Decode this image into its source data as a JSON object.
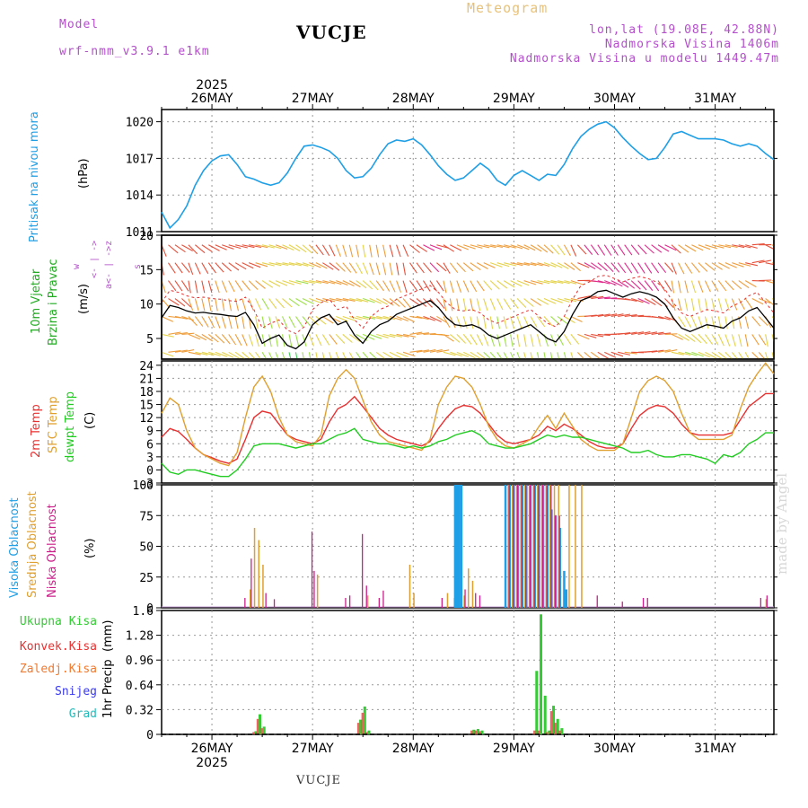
{
  "header": {
    "model_label": "Model",
    "model_name": "wrf-nmm_v3.9.1 e1km",
    "station": "VUCJE",
    "meteogram_label": "Meteogram",
    "coords": "lon,lat (19.08E, 42.88N)",
    "elevation": "Nadmorska Visina 1406m",
    "model_elevation": "Nadmorska Visina u modelu 1449.47m"
  },
  "footer": {
    "station": "VUCJE",
    "watermark": "made by Angel"
  },
  "colors": {
    "pressure": "#1e9fe6",
    "wind_label": "#22aa22",
    "temp2m": "#e83030",
    "sfc": "#e0a030",
    "dewpt": "#22cc22",
    "high_cloud": "#1e9fe6",
    "mid_cloud": "#e0a030",
    "low_cloud": "#cc1f8a",
    "total_precip": "#33cc33",
    "conv_precip": "#e83030",
    "frozen_precip": "#f07a30",
    "snow": "#3a3aee",
    "graupel": "#22bbbb",
    "compass": "#b44fcc"
  },
  "chart_data": [
    {
      "id": "pressure",
      "type": "line",
      "ylabel": "Pritisak na nivou mora",
      "yunit": "(hPa)",
      "ylim": [
        1011,
        1021
      ],
      "yticks": [
        1011,
        1014,
        1017,
        1020
      ],
      "grid": true,
      "series": [
        {
          "x": [
            0,
            2,
            4,
            6,
            8,
            10,
            12,
            14,
            16,
            18,
            20,
            22,
            24,
            26,
            28,
            30,
            32,
            34,
            36,
            38,
            40,
            42,
            44,
            46,
            48,
            50,
            52,
            54,
            56,
            58,
            60,
            62,
            64,
            66,
            68,
            70,
            72,
            74,
            76,
            78,
            80,
            82,
            84,
            86,
            88,
            90,
            92,
            94,
            96,
            98,
            100,
            102,
            104,
            106,
            108,
            110,
            112,
            114,
            116,
            118,
            120,
            122,
            124,
            126,
            128,
            130,
            132,
            134,
            136,
            138,
            140,
            142,
            144,
            146
          ],
          "y": [
            1012.6,
            1011.3,
            1012.0,
            1013.1,
            1014.8,
            1016.0,
            1016.8,
            1017.2,
            1017.3,
            1016.5,
            1015.5,
            1015.3,
            1015.0,
            1014.8,
            1015.0,
            1015.8,
            1017.0,
            1018.0,
            1018.1,
            1017.9,
            1017.6,
            1017.0,
            1016.0,
            1015.4,
            1015.5,
            1016.2,
            1017.3,
            1018.2,
            1018.5,
            1018.4,
            1018.6,
            1018.1,
            1017.3,
            1016.4,
            1015.7,
            1015.2,
            1015.4,
            1016.0,
            1016.6,
            1016.1,
            1015.2,
            1014.8,
            1015.6,
            1016.0,
            1015.6,
            1015.2,
            1015.7,
            1015.6,
            1016.5,
            1017.8,
            1018.8,
            1019.4,
            1019.8,
            1020.0,
            1019.5,
            1018.7,
            1018.0,
            1017.4,
            1016.9,
            1017.0,
            1017.9,
            1019.0,
            1019.2,
            1018.9,
            1018.6,
            1018.6,
            1018.6,
            1018.5,
            1018.2,
            1018.0,
            1018.2,
            1018.0,
            1017.4,
            1016.9
          ],
          "name": ""
        }
      ]
    },
    {
      "id": "wind",
      "type": "line",
      "ylabel": "10m Vjetar\nBrzina i Pravac",
      "yunit": "(m/s)",
      "ylim": [
        2,
        20
      ],
      "yticks": [
        5,
        10,
        15,
        20
      ],
      "grid": false,
      "compass": [
        "w",
        "<- | ->",
        "a<- | ->z",
        "s"
      ],
      "series": [
        {
          "x": [
            0,
            2,
            4,
            6,
            8,
            10,
            12,
            14,
            16,
            18,
            20,
            22,
            24,
            26,
            28,
            30,
            32,
            34,
            36,
            38,
            40,
            42,
            44,
            46,
            48,
            50,
            52,
            54,
            56,
            58,
            60,
            62,
            64,
            66,
            68,
            70,
            72,
            74,
            76,
            78,
            80,
            82,
            84,
            86,
            88,
            90,
            92,
            94,
            96,
            98,
            100,
            102,
            104,
            106,
            108,
            110,
            112,
            114,
            116,
            118,
            120,
            122,
            124,
            126,
            128,
            130,
            132,
            134,
            136,
            138,
            140,
            142,
            144,
            146
          ],
          "y": [
            8.0,
            9.8,
            9.5,
            9.0,
            8.7,
            8.8,
            8.6,
            8.5,
            8.3,
            8.2,
            8.8,
            7.0,
            4.3,
            5.0,
            5.5,
            4.0,
            3.5,
            4.5,
            7.0,
            8.0,
            8.5,
            7.0,
            7.5,
            5.5,
            4.3,
            6.0,
            7.0,
            7.5,
            8.5,
            9.0,
            9.5,
            10.0,
            10.5,
            9.5,
            8.0,
            7.0,
            6.8,
            7.0,
            6.5,
            5.5,
            5.0,
            5.5,
            6.0,
            6.5,
            7.0,
            6.0,
            5.0,
            4.5,
            6.0,
            8.5,
            10.5,
            11.0,
            11.8,
            12.0,
            11.5,
            11.0,
            11.5,
            11.8,
            11.5,
            11.0,
            10.0,
            8.0,
            6.5,
            6.0,
            6.5,
            7.0,
            6.8,
            6.5,
            7.5,
            8.0,
            9.0,
            9.5,
            8.0,
            6.5
          ],
          "name": ""
        }
      ]
    },
    {
      "id": "temperature",
      "type": "line",
      "ylabels": [
        "2m Temp",
        "SFC Temp",
        "dewpt Temp"
      ],
      "yunit": "(C)",
      "ylim": [
        -3,
        25
      ],
      "yticks": [
        -3,
        0,
        3,
        6,
        9,
        12,
        15,
        18,
        21,
        24
      ],
      "grid": true,
      "x": [
        0,
        2,
        4,
        6,
        8,
        10,
        12,
        14,
        16,
        18,
        20,
        22,
        24,
        26,
        28,
        30,
        32,
        34,
        36,
        38,
        40,
        42,
        44,
        46,
        48,
        50,
        52,
        54,
        56,
        58,
        60,
        62,
        64,
        66,
        68,
        70,
        72,
        74,
        76,
        78,
        80,
        82,
        84,
        86,
        88,
        90,
        92,
        94,
        96,
        98,
        100,
        102,
        104,
        106,
        108,
        110,
        112,
        114,
        116,
        118,
        120,
        122,
        124,
        126,
        128,
        130,
        132,
        134,
        136,
        138,
        140,
        142,
        144,
        146
      ],
      "series": [
        {
          "name": "2m Temp",
          "y": [
            7.5,
            9.5,
            8.8,
            7.0,
            5.0,
            3.5,
            2.8,
            2.0,
            1.5,
            2.5,
            7.0,
            12.0,
            13.5,
            13.0,
            10.5,
            8.0,
            7.0,
            6.5,
            6.0,
            7.0,
            11.0,
            14.0,
            15.0,
            16.8,
            14.5,
            12.0,
            9.5,
            8.0,
            7.0,
            6.5,
            6.0,
            5.5,
            6.5,
            9.5,
            12.0,
            14.0,
            14.8,
            14.5,
            13.0,
            10.5,
            8.0,
            6.5,
            6.0,
            6.5,
            7.0,
            8.0,
            10.0,
            9.0,
            10.5,
            9.5,
            8.0,
            6.5,
            5.5,
            5.0,
            5.0,
            6.0,
            9.5,
            12.5,
            14.0,
            14.8,
            14.5,
            13.0,
            10.5,
            8.5,
            8.0,
            8.0,
            8.0,
            8.0,
            8.5,
            11.5,
            14.5,
            16.0,
            17.5,
            17.5
          ]
        },
        {
          "name": "SFC Temp",
          "y": [
            13.0,
            16.5,
            15.0,
            9.0,
            5.0,
            3.5,
            2.5,
            1.5,
            1.0,
            4.0,
            12.0,
            19.0,
            21.5,
            18.0,
            12.0,
            8.0,
            6.5,
            6.0,
            5.5,
            8.0,
            17.0,
            21.0,
            23.0,
            21.0,
            16.0,
            11.0,
            8.0,
            6.5,
            6.0,
            5.5,
            5.0,
            4.5,
            7.0,
            15.0,
            19.0,
            21.5,
            21.0,
            19.0,
            15.0,
            10.0,
            7.0,
            5.5,
            5.0,
            6.0,
            7.0,
            10.0,
            12.5,
            9.5,
            13.0,
            10.0,
            7.0,
            5.5,
            4.5,
            4.5,
            4.5,
            6.0,
            12.0,
            18.0,
            20.5,
            21.5,
            20.5,
            18.0,
            13.0,
            8.5,
            7.0,
            7.0,
            7.0,
            7.0,
            8.0,
            14.0,
            19.0,
            22.0,
            24.5,
            22.0
          ]
        },
        {
          "name": "dewpt Temp",
          "y": [
            1.5,
            -0.5,
            -1.0,
            0.0,
            0.0,
            -0.5,
            -1.0,
            -1.5,
            -1.5,
            0.0,
            2.5,
            5.5,
            6.0,
            6.0,
            6.0,
            5.5,
            5.0,
            5.5,
            6.0,
            6.0,
            7.0,
            8.0,
            8.5,
            9.5,
            7.0,
            6.5,
            6.0,
            6.0,
            5.5,
            5.0,
            5.5,
            5.0,
            5.5,
            6.5,
            7.0,
            8.0,
            8.5,
            9.0,
            8.0,
            6.0,
            5.5,
            5.0,
            5.0,
            5.5,
            6.0,
            7.0,
            8.0,
            7.5,
            8.0,
            7.5,
            7.5,
            7.0,
            6.5,
            6.0,
            5.5,
            5.0,
            4.0,
            4.0,
            4.5,
            3.5,
            3.0,
            3.0,
            3.5,
            3.5,
            3.0,
            2.5,
            1.5,
            3.5,
            3.0,
            4.0,
            6.0,
            7.0,
            8.5,
            8.5
          ]
        }
      ]
    },
    {
      "id": "clouds",
      "type": "bar",
      "ylabels": [
        "Visoka Oblacnost",
        "Srednja Oblacnost",
        "Niska Oblacnost"
      ],
      "yunit": "(%)",
      "ylim": [
        0,
        100
      ],
      "yticks": [
        0,
        25,
        50,
        75,
        100
      ],
      "grid": true,
      "series": [
        {
          "name": "Visoka Oblacnost",
          "x": [
            70,
            70.5,
            71,
            71.5,
            82,
            83,
            84,
            85,
            86,
            87,
            88,
            89,
            90,
            91,
            92,
            93,
            94,
            95,
            96,
            96.5
          ],
          "y": [
            100,
            100,
            100,
            100,
            100,
            100,
            100,
            100,
            100,
            100,
            100,
            100,
            100,
            100,
            100,
            80,
            75,
            65,
            30,
            15
          ]
        },
        {
          "name": "Srednja Oblacnost",
          "x": [
            21,
            22,
            23,
            24,
            37,
            49,
            59,
            60,
            68,
            72,
            73,
            74,
            82.5,
            83.5,
            84.5,
            85.5,
            86.5,
            87.5,
            88.5,
            89.5,
            90.5,
            91.5,
            92.5,
            93.5,
            94.5,
            97,
            98.5,
            100,
            144
          ],
          "y": [
            15,
            65,
            55,
            35,
            27,
            10,
            35,
            12,
            12,
            10,
            32,
            22,
            100,
            100,
            100,
            100,
            100,
            100,
            100,
            100,
            100,
            100,
            100,
            100,
            100,
            100,
            100,
            100,
            7
          ]
        },
        {
          "name": "Niska Oblacnost",
          "x": [
            20,
            21.5,
            25,
            27,
            36,
            36.5,
            44,
            45,
            48,
            49,
            52,
            53,
            67,
            70,
            72.5,
            75,
            76,
            83,
            84,
            85,
            86,
            87,
            88,
            89,
            90,
            91,
            92,
            93,
            94,
            95,
            104,
            110,
            115,
            116,
            143,
            144.5
          ],
          "y": [
            8,
            40,
            12,
            7,
            62,
            30,
            8,
            10,
            60,
            18,
            8,
            14,
            8,
            8,
            15,
            12,
            10,
            100,
            100,
            100,
            100,
            100,
            100,
            100,
            100,
            100,
            100,
            100,
            75,
            75,
            10,
            5,
            8,
            8,
            8,
            10
          ]
        }
      ]
    },
    {
      "id": "precip",
      "type": "bar",
      "ylabel": "1hr Precip",
      "yunit": "(mm)",
      "ylim": [
        0,
        1.6
      ],
      "yticks": [
        0,
        0.32,
        0.64,
        0.96,
        1.28,
        1.6
      ],
      "ytick_labels": [
        "0",
        "0.32",
        "0.64",
        "0.96",
        "1.28",
        "1.6"
      ],
      "grid": true,
      "legend": [
        "Ukupna Kisa",
        "Konvek.Kisa",
        "Zaledj.Kisa",
        "Snijeg",
        "Grad"
      ],
      "series": [
        {
          "name": "Ukupna Kisa",
          "x": [
            22,
            23,
            24,
            47,
            48,
            49,
            74,
            75,
            76,
            89,
            90,
            91,
            92,
            93,
            94,
            95
          ],
          "y": [
            0.04,
            0.26,
            0.1,
            0.19,
            0.36,
            0.05,
            0.06,
            0.07,
            0.05,
            0.82,
            1.55,
            0.5,
            0.05,
            0.37,
            0.2,
            0.08
          ]
        },
        {
          "name": "Konvek.Kisa",
          "x": [
            22,
            23,
            24,
            47,
            48,
            49,
            74,
            75,
            76,
            89,
            90,
            92,
            93,
            94,
            95
          ],
          "y": [
            0.03,
            0.2,
            0.08,
            0.15,
            0.28,
            0.03,
            0.05,
            0.05,
            0.04,
            0.05,
            0.05,
            0.03,
            0.3,
            0.15,
            0.05
          ]
        }
      ]
    }
  ],
  "time_axis": {
    "top_days": [
      "26MAY",
      "27MAY",
      "28MAY",
      "29MAY",
      "30MAY",
      "31MAY"
    ],
    "top_year": "2025",
    "bottom_days": [
      "26MAY",
      "27MAY",
      "28MAY",
      "29MAY",
      "30MAY",
      "31MAY"
    ],
    "bottom_year": "2025",
    "day_ticks_hours": [
      12,
      36,
      60,
      84,
      108,
      132
    ]
  }
}
